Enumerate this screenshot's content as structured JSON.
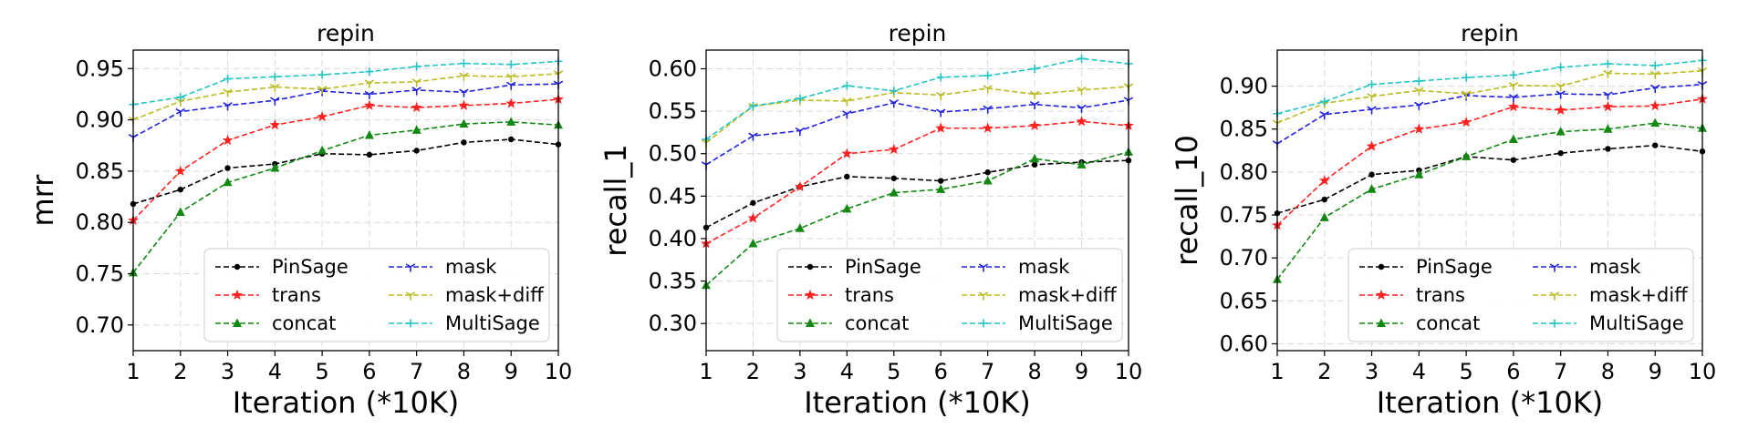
{
  "chart_data": [
    {
      "type": "line",
      "title": "repin",
      "xlabel": "Iteration (*10K)",
      "ylabel": "mrr",
      "x": [
        1,
        2,
        3,
        4,
        5,
        6,
        7,
        8,
        9,
        10
      ],
      "xlim": [
        1,
        10
      ],
      "ylim": [
        0.675,
        0.968
      ],
      "yticks": [
        0.7,
        0.75,
        0.8,
        0.85,
        0.9,
        0.95
      ],
      "ytick_labels": [
        "0.70",
        "0.75",
        "0.80",
        "0.85",
        "0.90",
        "0.95"
      ],
      "grid": true,
      "legend": "lower-right, 2 columns",
      "series": [
        {
          "name": "PinSage",
          "color": "#000000",
          "marker": "dot",
          "values": [
            0.818,
            0.832,
            0.853,
            0.857,
            0.867,
            0.866,
            0.87,
            0.878,
            0.881,
            0.876
          ]
        },
        {
          "name": "trans",
          "color": "#ff2020",
          "marker": "star",
          "values": [
            0.802,
            0.85,
            0.88,
            0.895,
            0.903,
            0.914,
            0.912,
            0.914,
            0.916,
            0.92
          ]
        },
        {
          "name": "concat",
          "color": "#118811",
          "marker": "triangle",
          "values": [
            0.751,
            0.81,
            0.839,
            0.853,
            0.87,
            0.885,
            0.89,
            0.896,
            0.898,
            0.895
          ]
        },
        {
          "name": "mask",
          "color": "#2222dd",
          "marker": "tri-down",
          "values": [
            0.883,
            0.908,
            0.914,
            0.919,
            0.928,
            0.925,
            0.929,
            0.927,
            0.934,
            0.935
          ]
        },
        {
          "name": "mask+diff",
          "color": "#bbbb22",
          "marker": "tri-down",
          "values": [
            0.9,
            0.918,
            0.927,
            0.932,
            0.93,
            0.936,
            0.937,
            0.943,
            0.942,
            0.945
          ]
        },
        {
          "name": "MultiSage",
          "color": "#22c4c4",
          "marker": "plus",
          "values": [
            0.915,
            0.922,
            0.94,
            0.942,
            0.944,
            0.947,
            0.952,
            0.955,
            0.954,
            0.957
          ]
        }
      ]
    },
    {
      "type": "line",
      "title": "repin",
      "xlabel": "Iteration (*10K)",
      "ylabel": "recall_1",
      "x": [
        1,
        2,
        3,
        4,
        5,
        6,
        7,
        8,
        9,
        10
      ],
      "xlim": [
        1,
        10
      ],
      "ylim": [
        0.268,
        0.622
      ],
      "yticks": [
        0.3,
        0.35,
        0.4,
        0.45,
        0.5,
        0.55,
        0.6
      ],
      "ytick_labels": [
        "0.30",
        "0.35",
        "0.40",
        "0.45",
        "0.50",
        "0.55",
        "0.60"
      ],
      "grid": true,
      "legend": "lower-right, 2 columns",
      "series": [
        {
          "name": "PinSage",
          "color": "#000000",
          "marker": "dot",
          "values": [
            0.413,
            0.442,
            0.461,
            0.473,
            0.471,
            0.468,
            0.478,
            0.487,
            0.49,
            0.492
          ]
        },
        {
          "name": "trans",
          "color": "#ff2020",
          "marker": "star",
          "values": [
            0.394,
            0.424,
            0.461,
            0.5,
            0.505,
            0.53,
            0.53,
            0.533,
            0.538,
            0.533
          ]
        },
        {
          "name": "concat",
          "color": "#118811",
          "marker": "triangle",
          "values": [
            0.345,
            0.394,
            0.412,
            0.435,
            0.454,
            0.458,
            0.468,
            0.494,
            0.487,
            0.502
          ]
        },
        {
          "name": "mask",
          "color": "#2222dd",
          "marker": "tri-down",
          "values": [
            0.487,
            0.521,
            0.527,
            0.547,
            0.56,
            0.549,
            0.553,
            0.558,
            0.554,
            0.563
          ]
        },
        {
          "name": "mask+diff",
          "color": "#bbbb22",
          "marker": "tri-down",
          "values": [
            0.513,
            0.556,
            0.563,
            0.562,
            0.572,
            0.569,
            0.577,
            0.57,
            0.575,
            0.579
          ]
        },
        {
          "name": "MultiSage",
          "color": "#22c4c4",
          "marker": "plus",
          "values": [
            0.517,
            0.556,
            0.565,
            0.58,
            0.574,
            0.59,
            0.592,
            0.6,
            0.612,
            0.606
          ]
        }
      ]
    },
    {
      "type": "line",
      "title": "repin",
      "xlabel": "Iteration (*10K)",
      "ylabel": "recall_10",
      "x": [
        1,
        2,
        3,
        4,
        5,
        6,
        7,
        8,
        9,
        10
      ],
      "xlim": [
        1,
        10
      ],
      "ylim": [
        0.592,
        0.942
      ],
      "yticks": [
        0.6,
        0.65,
        0.7,
        0.75,
        0.8,
        0.85,
        0.9
      ],
      "ytick_labels": [
        "0.60",
        "0.65",
        "0.70",
        "0.75",
        "0.80",
        "0.85",
        "0.90"
      ],
      "grid": true,
      "legend": "lower-right, 2 columns",
      "series": [
        {
          "name": "PinSage",
          "color": "#000000",
          "marker": "dot",
          "values": [
            0.752,
            0.768,
            0.797,
            0.802,
            0.818,
            0.814,
            0.822,
            0.827,
            0.831,
            0.824
          ]
        },
        {
          "name": "trans",
          "color": "#ff2020",
          "marker": "star",
          "values": [
            0.738,
            0.79,
            0.83,
            0.85,
            0.858,
            0.876,
            0.872,
            0.876,
            0.877,
            0.885
          ]
        },
        {
          "name": "concat",
          "color": "#118811",
          "marker": "triangle",
          "values": [
            0.675,
            0.747,
            0.78,
            0.797,
            0.818,
            0.838,
            0.847,
            0.85,
            0.857,
            0.851
          ]
        },
        {
          "name": "mask",
          "color": "#2222dd",
          "marker": "tri-down",
          "values": [
            0.833,
            0.867,
            0.873,
            0.878,
            0.889,
            0.887,
            0.891,
            0.89,
            0.898,
            0.902
          ]
        },
        {
          "name": "mask+diff",
          "color": "#bbbb22",
          "marker": "tri-down",
          "values": [
            0.857,
            0.88,
            0.888,
            0.895,
            0.891,
            0.901,
            0.9,
            0.915,
            0.914,
            0.918
          ]
        },
        {
          "name": "MultiSage",
          "color": "#22c4c4",
          "marker": "plus",
          "values": [
            0.868,
            0.882,
            0.902,
            0.906,
            0.91,
            0.913,
            0.922,
            0.926,
            0.924,
            0.93
          ]
        }
      ]
    }
  ]
}
